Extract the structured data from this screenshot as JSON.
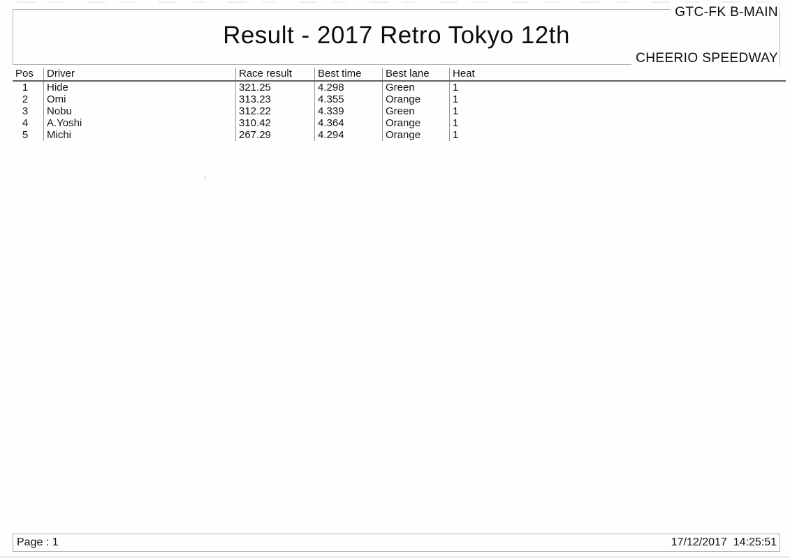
{
  "header": {
    "event_label": "GTC-FK B-MAIN",
    "title": "Result - 2017 Retro Tokyo 12th",
    "venue_label": "CHEERIO SPEEDWAY"
  },
  "table": {
    "columns": [
      "Pos",
      "Driver",
      "Race result",
      "Best time",
      "Best lane",
      "Heat"
    ],
    "rows": [
      {
        "pos": "1",
        "driver": "Hide",
        "race_result": "321.25",
        "best_time": "4.298",
        "best_lane": "Green",
        "heat": "1"
      },
      {
        "pos": "2",
        "driver": "Omi",
        "race_result": "313.23",
        "best_time": "4.355",
        "best_lane": "Orange",
        "heat": "1"
      },
      {
        "pos": "3",
        "driver": "Nobu",
        "race_result": "312.22",
        "best_time": "4.339",
        "best_lane": "Green",
        "heat": "1"
      },
      {
        "pos": "4",
        "driver": "A.Yoshi",
        "race_result": "310.42",
        "best_time": "4.364",
        "best_lane": "Orange",
        "heat": "1"
      },
      {
        "pos": "5",
        "driver": "Michi",
        "race_result": "267.29",
        "best_time": "4.294",
        "best_lane": "Orange",
        "heat": "1"
      }
    ]
  },
  "footer": {
    "page_label": "Page : 1",
    "datetime": "17/12/2017  14:25:51"
  }
}
